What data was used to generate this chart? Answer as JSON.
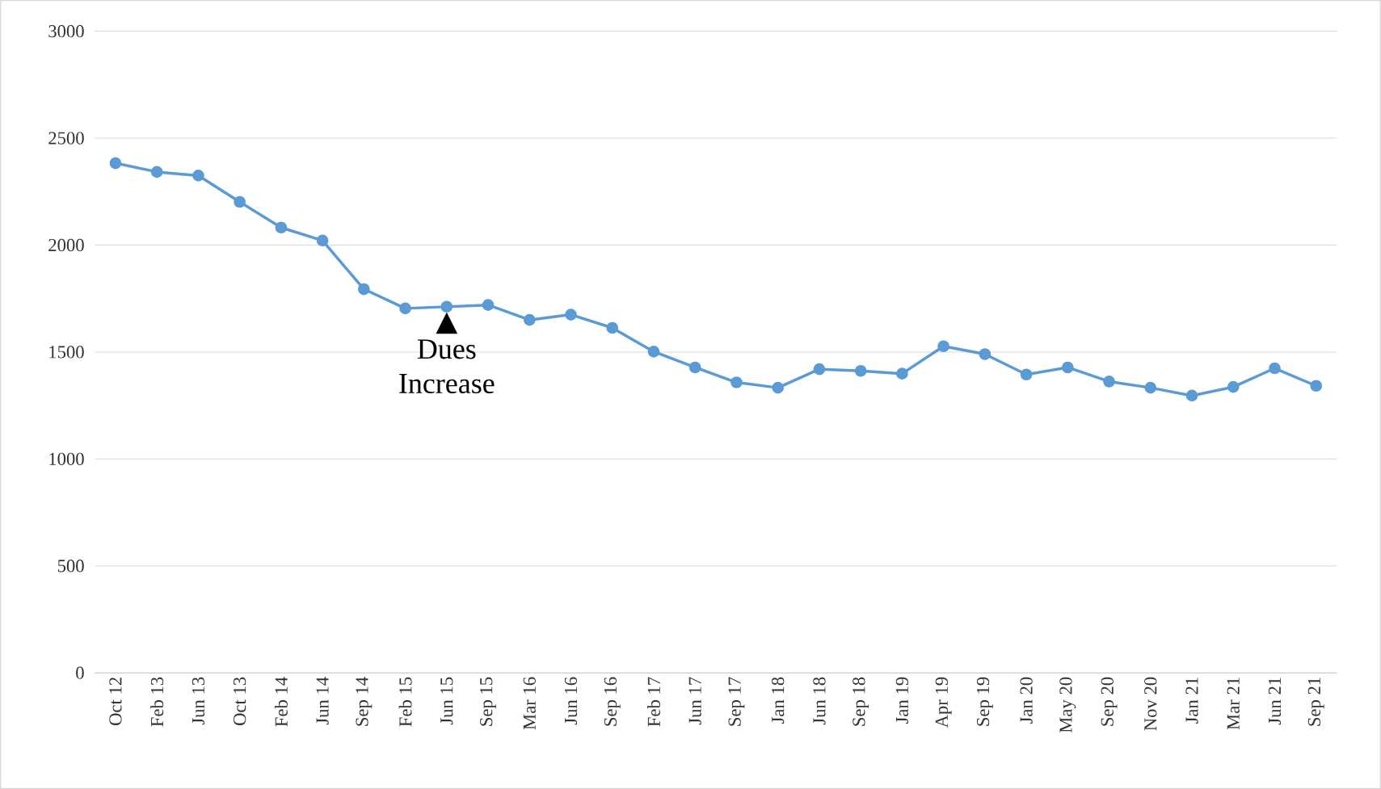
{
  "chart_data": {
    "type": "line",
    "categories": [
      "Oct 12",
      "Feb 13",
      "Jun 13",
      "Oct 13",
      "Feb 14",
      "Jun 14",
      "Sep 14",
      "Feb 15",
      "Jun 15",
      "Sep 15",
      "Mar 16",
      "Jun 16",
      "Sep 16",
      "Feb 17",
      "Jun 17",
      "Sep 17",
      "Jan 18",
      "Jun 18",
      "Sep 18",
      "Jan 19",
      "Apr 19",
      "Sep 19",
      "Jan 20",
      "May 20",
      "Sep 20",
      "Nov 20",
      "Jan 21",
      "Mar 21",
      "Jun 21",
      "Sep 21"
    ],
    "values": [
      2383,
      2342,
      2325,
      2202,
      2082,
      2021,
      1794,
      1704,
      1712,
      1720,
      1650,
      1675,
      1613,
      1502,
      1428,
      1358,
      1333,
      1420,
      1412,
      1399,
      1527,
      1490,
      1395,
      1428,
      1362,
      1333,
      1296,
      1337,
      1424,
      1342
    ],
    "color": "#5b9bd5",
    "marker": "circle",
    "line_style": "solid",
    "ylim": [
      0,
      3000
    ],
    "yticks": [
      0,
      500,
      1000,
      1500,
      2000,
      2500,
      3000
    ],
    "grid": "y",
    "annotations": [
      {
        "text": "Dues Increase",
        "x": "Jun 15",
        "y": 1712
      }
    ]
  }
}
